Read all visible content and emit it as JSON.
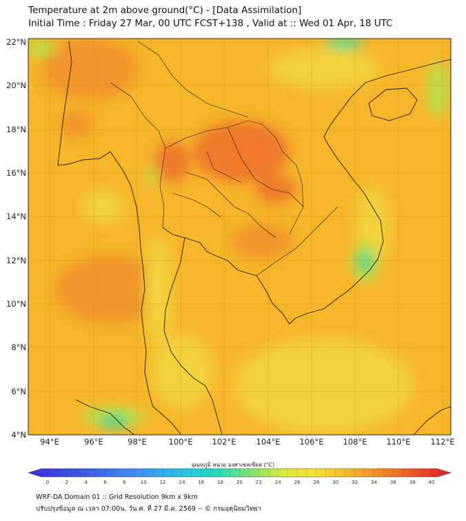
{
  "header": {
    "title_line1": "Temperature at 2m above ground(°C) - [Data Assimilation]",
    "title_line2": "Initial Time : Friday 27 Mar, 00 UTC FCST+138 , Valid at :: Wed 01 Apr, 18 UTC"
  },
  "map": {
    "lat_labels": [
      "22°N",
      "20°N",
      "18°N",
      "16°N",
      "14°N",
      "12°N",
      "10°N",
      "8°N",
      "6°N",
      "4°N"
    ],
    "lon_labels": [
      "94°E",
      "96°E",
      "98°E",
      "100°E",
      "102°E",
      "104°E",
      "106°E",
      "108°E",
      "110°E",
      "112°E"
    ],
    "colors": {
      "background": "#f6b62a",
      "warm": "#f0952a",
      "hot": "#ee7a2c",
      "mild": "#f2d23a",
      "cool": "#b8e04a",
      "cold": "#46d88a"
    }
  },
  "colorbar": {
    "label": "อุณหภูมิ หน่วย องศาเซลเซียส (°C)",
    "ticks": [
      "0",
      "2",
      "4",
      "6",
      "8",
      "10",
      "12",
      "14",
      "16",
      "18",
      "20",
      "22",
      "24",
      "26",
      "28",
      "30",
      "32",
      "34",
      "36",
      "38",
      "40"
    ]
  },
  "footer": {
    "line1": "WRF-DA Domain 01 :: Grid Resolution 9km x 9km",
    "line2": "ปรับปรุงข้อมูล ณ เวลา 07:00น. วัน ศ. ที่ 27 มี.ค. 2569 -- © กรมอุตุนิยมวิทยา"
  }
}
